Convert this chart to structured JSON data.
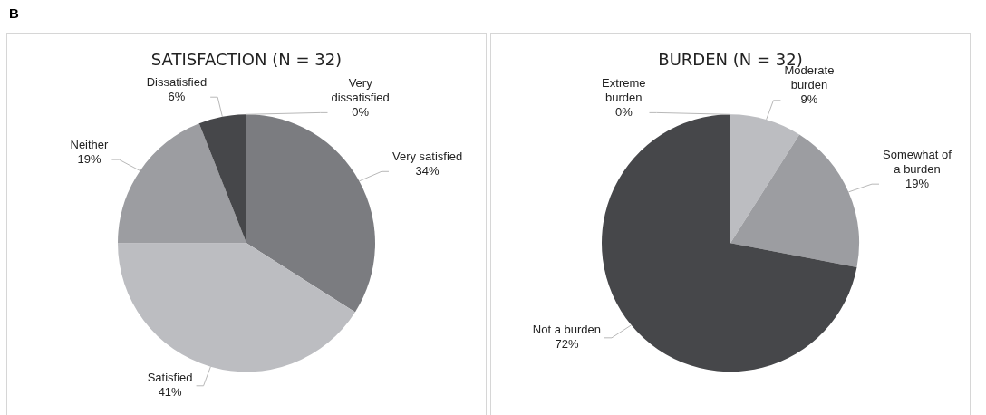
{
  "chart_data": [
    {
      "type": "pie",
      "title": "SATISFACTION (N = 32)",
      "annotations": [
        "B"
      ],
      "categories": [
        "Very satisfied",
        "Satisfied",
        "Neither",
        "Dissatisfied",
        "Very dissatisfied"
      ],
      "values": [
        34,
        41,
        19,
        6,
        0
      ],
      "value_labels": [
        "34%",
        "41%",
        "19%",
        "6%",
        "0%"
      ],
      "colors": [
        "#7b7c80",
        "#bcbdc1",
        "#9c9da1",
        "#46474a",
        "#2e2f32"
      ],
      "legend": false
    },
    {
      "type": "pie",
      "title": "BURDEN (N = 32)",
      "categories": [
        "Moderate burden",
        "Somewhat of a burden",
        "Not a burden",
        "Extreme burden"
      ],
      "values": [
        9,
        19,
        72,
        0
      ],
      "value_labels": [
        "9%",
        "19%",
        "72%",
        "0%"
      ],
      "colors": [
        "#bcbdc1",
        "#9c9da1",
        "#46474a",
        "#7b7c80"
      ],
      "legend": false
    }
  ]
}
